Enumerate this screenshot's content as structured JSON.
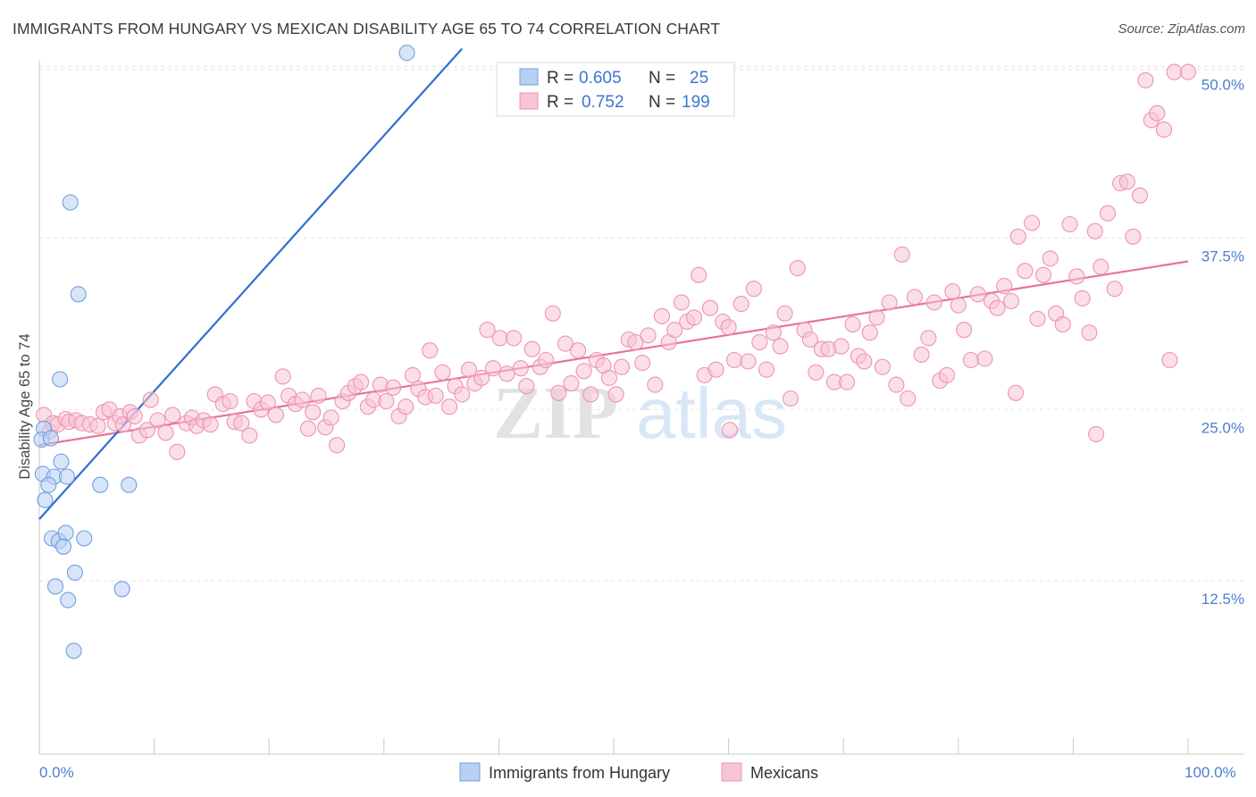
{
  "header": {
    "title": "IMMIGRANTS FROM HUNGARY VS MEXICAN DISABILITY AGE 65 TO 74 CORRELATION CHART",
    "source": "Source: ZipAtlas.com"
  },
  "watermark": {
    "zip": "ZIP",
    "atlas": "atlas"
  },
  "stats_legend": {
    "hungary": {
      "r_label": "R =",
      "r_value": "0.605",
      "n_label": "N =",
      "n_value": "25"
    },
    "mexicans": {
      "r_label": "R =",
      "r_value": "0.752",
      "n_label": "N =",
      "n_value": "199"
    }
  },
  "colors": {
    "hungary_fill": "#b8d0f3",
    "hungary_stroke": "#6f9fe0",
    "hungary_line": "#2f6fcf",
    "mexicans_fill": "#f7c5d4",
    "mexicans_stroke": "#ee93b0",
    "mexicans_line": "#e8729b",
    "tick_text": "#4a7fd0",
    "grid": "#e3e3e3"
  },
  "chart_data": {
    "type": "scatter",
    "title": "IMMIGRANTS FROM HUNGARY VS MEXICAN DISABILITY AGE 65 TO 74 CORRELATION CHART",
    "xlabel": "",
    "ylabel": "Disability Age 65 to 74",
    "xlim": [
      0,
      100
    ],
    "ylim": [
      0,
      52
    ],
    "x_tick_labels": [
      "0.0%",
      "100.0%"
    ],
    "y_ticks": [
      12.5,
      25.0,
      37.5,
      50.0
    ],
    "y_tick_labels": [
      "12.5%",
      "25.0%",
      "37.5%",
      "50.0%"
    ],
    "grid": true,
    "legend_position": "bottom",
    "series": [
      {
        "name": "Immigrants from Hungary",
        "r": 0.605,
        "n": 25,
        "trend": {
          "x": [
            0.0,
            36.8
          ],
          "y": [
            17.0,
            51.3
          ]
        },
        "points": [
          [
            32.0,
            51.0
          ],
          [
            2.7,
            40.1
          ],
          [
            3.4,
            33.4
          ],
          [
            1.8,
            27.2
          ],
          [
            0.4,
            23.6
          ],
          [
            0.2,
            22.8
          ],
          [
            1.0,
            22.9
          ],
          [
            1.9,
            21.2
          ],
          [
            0.3,
            20.3
          ],
          [
            1.3,
            20.1
          ],
          [
            2.4,
            20.1
          ],
          [
            0.8,
            19.5
          ],
          [
            5.3,
            19.5
          ],
          [
            7.8,
            19.5
          ],
          [
            0.5,
            18.4
          ],
          [
            1.1,
            15.6
          ],
          [
            1.7,
            15.4
          ],
          [
            2.3,
            16.0
          ],
          [
            3.9,
            15.6
          ],
          [
            2.1,
            15.0
          ],
          [
            3.1,
            13.1
          ],
          [
            1.4,
            12.1
          ],
          [
            7.2,
            11.9
          ],
          [
            2.5,
            11.1
          ],
          [
            3.0,
            7.4
          ]
        ]
      },
      {
        "name": "Mexicans",
        "r": 0.752,
        "n": 199,
        "trend": {
          "x": [
            0.0,
            100.0
          ],
          "y": [
            22.4,
            35.8
          ]
        },
        "points": [
          [
            0.4,
            24.6
          ],
          [
            0.9,
            23.4
          ],
          [
            1.2,
            24.0
          ],
          [
            1.6,
            23.9
          ],
          [
            2.3,
            24.3
          ],
          [
            2.6,
            24.1
          ],
          [
            3.2,
            24.2
          ],
          [
            3.7,
            24.0
          ],
          [
            4.4,
            23.9
          ],
          [
            5.1,
            23.8
          ],
          [
            5.6,
            24.8
          ],
          [
            6.1,
            25.0
          ],
          [
            6.6,
            24.0
          ],
          [
            7.0,
            24.5
          ],
          [
            7.3,
            23.9
          ],
          [
            7.9,
            24.8
          ],
          [
            8.3,
            24.5
          ],
          [
            8.7,
            23.1
          ],
          [
            9.4,
            23.5
          ],
          [
            9.7,
            25.7
          ],
          [
            10.3,
            24.2
          ],
          [
            11.0,
            23.3
          ],
          [
            11.6,
            24.6
          ],
          [
            12.0,
            21.9
          ],
          [
            12.8,
            24.0
          ],
          [
            13.3,
            24.4
          ],
          [
            13.7,
            23.8
          ],
          [
            14.3,
            24.2
          ],
          [
            14.9,
            23.9
          ],
          [
            15.3,
            26.1
          ],
          [
            16.0,
            25.4
          ],
          [
            16.6,
            25.6
          ],
          [
            17.0,
            24.1
          ],
          [
            17.6,
            24.0
          ],
          [
            18.3,
            23.1
          ],
          [
            18.7,
            25.6
          ],
          [
            19.3,
            25.0
          ],
          [
            19.9,
            25.5
          ],
          [
            20.6,
            24.6
          ],
          [
            21.2,
            27.4
          ],
          [
            21.7,
            26.0
          ],
          [
            22.3,
            25.4
          ],
          [
            22.9,
            25.7
          ],
          [
            23.4,
            23.6
          ],
          [
            23.8,
            24.8
          ],
          [
            24.3,
            26.0
          ],
          [
            24.9,
            23.7
          ],
          [
            25.4,
            24.4
          ],
          [
            25.9,
            22.4
          ],
          [
            26.4,
            25.6
          ],
          [
            26.9,
            26.2
          ],
          [
            27.5,
            26.7
          ],
          [
            28.0,
            27.0
          ],
          [
            28.6,
            25.2
          ],
          [
            29.1,
            25.7
          ],
          [
            29.7,
            26.8
          ],
          [
            30.2,
            25.6
          ],
          [
            30.8,
            26.6
          ],
          [
            31.3,
            24.5
          ],
          [
            31.9,
            25.2
          ],
          [
            32.5,
            27.5
          ],
          [
            33.0,
            26.5
          ],
          [
            33.6,
            25.9
          ],
          [
            34.0,
            29.3
          ],
          [
            34.5,
            26.0
          ],
          [
            35.1,
            27.7
          ],
          [
            35.7,
            25.2
          ],
          [
            36.2,
            26.7
          ],
          [
            36.8,
            26.1
          ],
          [
            37.4,
            27.9
          ],
          [
            37.9,
            26.9
          ],
          [
            38.5,
            27.3
          ],
          [
            39.0,
            30.8
          ],
          [
            39.5,
            28.0
          ],
          [
            40.1,
            30.2
          ],
          [
            40.7,
            27.6
          ],
          [
            41.3,
            30.2
          ],
          [
            41.9,
            28.0
          ],
          [
            42.4,
            26.7
          ],
          [
            42.9,
            29.4
          ],
          [
            43.6,
            28.1
          ],
          [
            44.1,
            28.6
          ],
          [
            44.7,
            32.0
          ],
          [
            45.2,
            26.2
          ],
          [
            45.8,
            29.8
          ],
          [
            46.3,
            26.9
          ],
          [
            46.9,
            29.3
          ],
          [
            47.4,
            27.8
          ],
          [
            48.0,
            26.1
          ],
          [
            48.5,
            28.6
          ],
          [
            49.1,
            28.2
          ],
          [
            49.6,
            27.3
          ],
          [
            50.2,
            26.1
          ],
          [
            50.7,
            28.1
          ],
          [
            51.3,
            30.1
          ],
          [
            51.9,
            29.9
          ],
          [
            52.5,
            28.4
          ],
          [
            53.0,
            30.4
          ],
          [
            53.6,
            26.8
          ],
          [
            54.2,
            31.8
          ],
          [
            54.8,
            29.9
          ],
          [
            55.3,
            30.8
          ],
          [
            55.9,
            32.8
          ],
          [
            56.4,
            31.4
          ],
          [
            57.0,
            31.7
          ],
          [
            57.4,
            34.8
          ],
          [
            57.9,
            27.5
          ],
          [
            58.4,
            32.4
          ],
          [
            58.9,
            27.9
          ],
          [
            59.5,
            31.4
          ],
          [
            60.0,
            31.0
          ],
          [
            60.5,
            28.6
          ],
          [
            61.1,
            32.7
          ],
          [
            61.7,
            28.5
          ],
          [
            62.2,
            33.8
          ],
          [
            62.7,
            29.9
          ],
          [
            63.3,
            27.9
          ],
          [
            63.9,
            30.6
          ],
          [
            64.5,
            29.6
          ],
          [
            64.9,
            32.0
          ],
          [
            65.4,
            25.8
          ],
          [
            66.0,
            35.3
          ],
          [
            66.6,
            30.8
          ],
          [
            67.1,
            30.1
          ],
          [
            67.6,
            27.7
          ],
          [
            68.1,
            29.4
          ],
          [
            68.7,
            29.4
          ],
          [
            69.2,
            27.0
          ],
          [
            69.8,
            29.6
          ],
          [
            70.3,
            27.0
          ],
          [
            70.8,
            31.2
          ],
          [
            71.3,
            28.9
          ],
          [
            71.8,
            28.5
          ],
          [
            72.3,
            30.6
          ],
          [
            72.9,
            31.7
          ],
          [
            73.4,
            28.1
          ],
          [
            74.0,
            32.8
          ],
          [
            74.6,
            26.8
          ],
          [
            75.1,
            36.3
          ],
          [
            75.6,
            25.8
          ],
          [
            76.2,
            33.2
          ],
          [
            76.8,
            29.0
          ],
          [
            77.4,
            30.2
          ],
          [
            77.9,
            32.8
          ],
          [
            78.4,
            27.1
          ],
          [
            79.0,
            27.5
          ],
          [
            79.5,
            33.6
          ],
          [
            80.0,
            32.6
          ],
          [
            80.5,
            30.8
          ],
          [
            81.1,
            28.6
          ],
          [
            81.7,
            33.4
          ],
          [
            82.3,
            28.7
          ],
          [
            82.9,
            32.9
          ],
          [
            83.4,
            32.4
          ],
          [
            84.0,
            34.0
          ],
          [
            84.6,
            32.9
          ],
          [
            85.2,
            37.6
          ],
          [
            85.8,
            35.1
          ],
          [
            86.4,
            38.6
          ],
          [
            86.9,
            31.6
          ],
          [
            87.4,
            34.8
          ],
          [
            88.0,
            36.0
          ],
          [
            88.5,
            32.0
          ],
          [
            89.1,
            31.2
          ],
          [
            89.7,
            38.5
          ],
          [
            90.3,
            34.7
          ],
          [
            90.8,
            33.1
          ],
          [
            91.4,
            30.6
          ],
          [
            91.9,
            38.0
          ],
          [
            92.4,
            35.4
          ],
          [
            93.0,
            39.3
          ],
          [
            93.6,
            33.8
          ],
          [
            94.1,
            41.5
          ],
          [
            94.7,
            41.6
          ],
          [
            95.2,
            37.6
          ],
          [
            95.8,
            40.6
          ],
          [
            96.3,
            49.0
          ],
          [
            96.8,
            46.1
          ],
          [
            97.3,
            46.6
          ],
          [
            97.9,
            45.4
          ],
          [
            98.4,
            28.6
          ],
          [
            98.8,
            49.6
          ],
          [
            100.0,
            49.6
          ],
          [
            92.0,
            23.2
          ],
          [
            85.0,
            26.2
          ],
          [
            60.1,
            23.5
          ]
        ]
      }
    ]
  },
  "bottom_legend": {
    "hungary_label": "Immigrants from Hungary",
    "mexicans_label": "Mexicans"
  }
}
